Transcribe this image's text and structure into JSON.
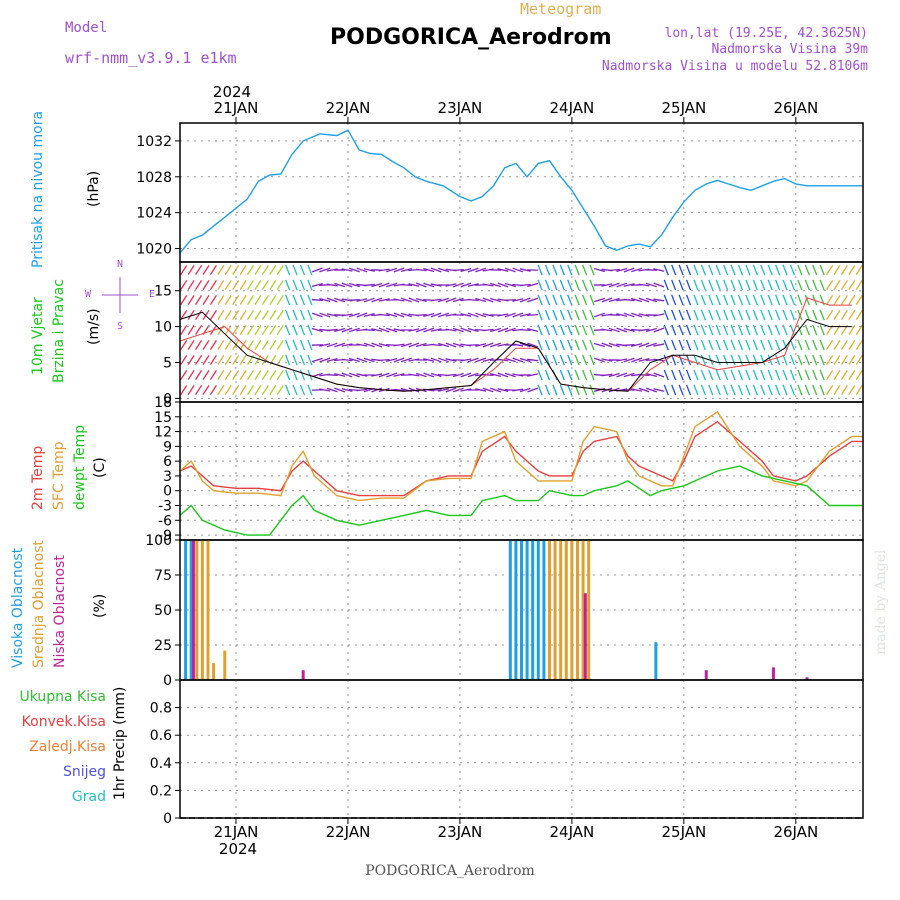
{
  "header": {
    "model_label": "Model",
    "model_name": "wrf-nmm_v3.9.1  e1km",
    "meteogram_label": "Meteogram",
    "station_title": "PODGORICA_Aerodrom",
    "lonlat": "lon,lat (19.25E, 42.3625N)",
    "altitude": "Nadmorska Visina 39m",
    "model_altitude": "Nadmorska Visina u modelu 52.8106m",
    "footer_station": "PODGORICA_Aerodrom",
    "credit": "made by Angel"
  },
  "colors": {
    "pressure": "#1ea0e6",
    "temp2m": "#e84040",
    "sfc_temp": "#e0a030",
    "dewpoint": "#18c818",
    "high_cloud": "#1ea0e6",
    "mid_cloud": "#e0a030",
    "low_cloud": "#c020a0",
    "wind_speed": "#e84040",
    "wind_gust": "#000000",
    "label_purple": "#a050d0",
    "label_meteo": "#e0b050"
  },
  "chart_data": [
    {
      "type": "line",
      "panel": "pressure",
      "ylabel_left": "Pritisak na nivou mora",
      "ylabel": "(hPa)",
      "ylim": [
        1018.5,
        1034
      ],
      "yticks": [
        1020,
        1024,
        1028,
        1032
      ],
      "x_year_top": "2024",
      "x_dates": [
        "21JAN",
        "22JAN",
        "23JAN",
        "24JAN",
        "25JAN",
        "26JAN"
      ],
      "x_day_positions": [
        0.5,
        1.5,
        2.5,
        3.5,
        4.5,
        5.5
      ],
      "xlim": [
        0.0,
        6.1
      ],
      "series": [
        {
          "color_key": "pressure",
          "x": [
            0.0,
            0.1,
            0.2,
            0.3,
            0.45,
            0.6,
            0.7,
            0.8,
            0.9,
            1.0,
            1.1,
            1.25,
            1.4,
            1.5,
            1.6,
            1.7,
            1.8,
            1.9,
            2.0,
            2.1,
            2.2,
            2.35,
            2.5,
            2.6,
            2.7,
            2.8,
            2.9,
            3.0,
            3.1,
            3.2,
            3.3,
            3.4,
            3.5,
            3.6,
            3.7,
            3.8,
            3.9,
            4.0,
            4.1,
            4.2,
            4.3,
            4.4,
            4.5,
            4.6,
            4.7,
            4.8,
            4.9,
            5.0,
            5.1,
            5.2,
            5.3,
            5.4,
            5.5,
            5.6,
            5.7,
            5.8,
            5.9,
            6.0,
            6.1
          ],
          "values": [
            1019.5,
            1021.0,
            1021.5,
            1022.5,
            1024.0,
            1025.5,
            1027.5,
            1028.2,
            1028.3,
            1030.5,
            1032.0,
            1032.8,
            1032.6,
            1033.2,
            1031.0,
            1030.6,
            1030.5,
            1029.7,
            1029.0,
            1028.0,
            1027.5,
            1027.0,
            1025.8,
            1025.3,
            1025.8,
            1027.0,
            1029.0,
            1029.5,
            1028.0,
            1029.5,
            1029.8,
            1028.0,
            1026.5,
            1024.5,
            1022.5,
            1020.3,
            1019.8,
            1020.3,
            1020.5,
            1020.2,
            1021.5,
            1023.5,
            1025.2,
            1026.5,
            1027.2,
            1027.6,
            1027.2,
            1026.8,
            1026.5,
            1027.0,
            1027.5,
            1027.8,
            1027.2,
            1027.0,
            1027.0,
            1027.0,
            1027.0,
            1027.0,
            1027.0
          ]
        }
      ]
    },
    {
      "type": "line",
      "panel": "wind",
      "ylabel_left_1": "10m Vjetar",
      "ylabel_left_2": "Brzina i Pravac",
      "ylabel": "(m/s)",
      "compass": [
        "N",
        "E",
        "S",
        "W",
        "v",
        "^",
        "<",
        ">"
      ],
      "ylim": [
        -0.5,
        19
      ],
      "yticks": [
        0,
        5,
        10,
        15
      ],
      "series": [
        {
          "name_key": "wind_speed",
          "color_key": "wind_speed",
          "x": [
            0.0,
            0.2,
            0.4,
            0.6,
            0.8,
            1.0,
            1.2,
            1.4,
            1.6,
            1.8,
            2.0,
            2.2,
            2.4,
            2.6,
            2.8,
            3.0,
            3.2,
            3.4,
            3.6,
            3.8,
            4.0,
            4.2,
            4.4,
            4.6,
            4.8,
            5.0,
            5.2,
            5.4,
            5.6,
            5.8,
            6.0
          ],
          "values": [
            8,
            9,
            10,
            7,
            5,
            4,
            3,
            2,
            1.5,
            1.2,
            1.0,
            1.2,
            1.5,
            1.8,
            4,
            7,
            7,
            2,
            1.5,
            1.2,
            1.0,
            4,
            6,
            5,
            4,
            4.5,
            5,
            6,
            14,
            13,
            13
          ]
        },
        {
          "name_key": "wind_gust",
          "color_key": "wind_gust",
          "x": [
            0.0,
            0.2,
            0.4,
            0.6,
            0.8,
            1.0,
            1.2,
            1.4,
            1.6,
            1.8,
            2.0,
            2.2,
            2.4,
            2.6,
            2.8,
            3.0,
            3.2,
            3.4,
            3.6,
            3.8,
            4.0,
            4.2,
            4.4,
            4.6,
            4.8,
            5.0,
            5.2,
            5.4,
            5.6,
            5.8,
            6.0
          ],
          "values": [
            11,
            12,
            9,
            6,
            5,
            4,
            3,
            2,
            1.5,
            1.2,
            1.0,
            1.2,
            1.5,
            1.8,
            5,
            8,
            7,
            2,
            1.5,
            1.2,
            1.0,
            5,
            6,
            6,
            5,
            5,
            5,
            7,
            11,
            10,
            10
          ]
        }
      ]
    },
    {
      "type": "line",
      "panel": "temperature",
      "ylabel_left_1": "2m Temp",
      "ylabel_left_2": "SFC Temp",
      "ylabel_left_3": "dewpt Temp",
      "ylabel": "(C)",
      "ylim": [
        -10,
        18
      ],
      "yticks": [
        -9,
        -6,
        -3,
        0,
        3,
        6,
        9,
        12,
        15,
        18
      ],
      "series": [
        {
          "color_key": "temp2m",
          "x": [
            0.0,
            0.1,
            0.2,
            0.3,
            0.5,
            0.7,
            0.9,
            1.0,
            1.1,
            1.2,
            1.4,
            1.6,
            1.8,
            2.0,
            2.2,
            2.4,
            2.6,
            2.7,
            2.9,
            3.0,
            3.2,
            3.3,
            3.5,
            3.6,
            3.7,
            3.9,
            4.0,
            4.1,
            4.3,
            4.4,
            4.5,
            4.6,
            4.8,
            5.0,
            5.2,
            5.3,
            5.5,
            5.6,
            5.8,
            6.0,
            6.1
          ],
          "values": [
            4,
            5,
            3,
            1,
            0.5,
            0.5,
            0,
            4,
            6,
            4,
            0,
            -1,
            -1,
            -1,
            2,
            3,
            3,
            8,
            11,
            8,
            4,
            3,
            3,
            8,
            10,
            11,
            7,
            5,
            3,
            2,
            6,
            11,
            14,
            10,
            6,
            3,
            2,
            3,
            7,
            10,
            10
          ]
        },
        {
          "color_key": "sfc_temp",
          "x": [
            0.0,
            0.1,
            0.2,
            0.3,
            0.5,
            0.7,
            0.9,
            1.0,
            1.1,
            1.2,
            1.4,
            1.6,
            1.8,
            2.0,
            2.2,
            2.4,
            2.6,
            2.7,
            2.9,
            3.0,
            3.2,
            3.3,
            3.5,
            3.6,
            3.7,
            3.9,
            4.0,
            4.1,
            4.3,
            4.4,
            4.5,
            4.6,
            4.8,
            5.0,
            5.2,
            5.3,
            5.5,
            5.6,
            5.8,
            6.0,
            6.1
          ],
          "values": [
            4,
            6,
            2,
            0,
            -0.5,
            -0.5,
            -1,
            5,
            8,
            3,
            -1,
            -2,
            -1.5,
            -1.5,
            2,
            2.5,
            2.5,
            10,
            12,
            6,
            2,
            2,
            2,
            10,
            13,
            12,
            6,
            3,
            1,
            1,
            7,
            13,
            16,
            9,
            5,
            2,
            1,
            2,
            8,
            11,
            11
          ]
        },
        {
          "color_key": "dewpoint",
          "x": [
            0.0,
            0.1,
            0.2,
            0.4,
            0.6,
            0.8,
            1.0,
            1.1,
            1.2,
            1.4,
            1.6,
            1.8,
            2.0,
            2.2,
            2.4,
            2.6,
            2.7,
            2.9,
            3.0,
            3.2,
            3.3,
            3.5,
            3.6,
            3.7,
            3.9,
            4.0,
            4.2,
            4.3,
            4.5,
            4.6,
            4.8,
            5.0,
            5.2,
            5.4,
            5.6,
            5.8,
            6.0,
            6.1
          ],
          "values": [
            -5,
            -3,
            -6,
            -8,
            -9,
            -9,
            -3,
            -1,
            -4,
            -6,
            -7,
            -6,
            -5,
            -4,
            -5,
            -5,
            -2,
            -1,
            -2,
            -2,
            0,
            -1,
            -1,
            0,
            1,
            2,
            -1,
            0,
            1,
            2,
            4,
            5,
            3,
            2,
            1,
            -3,
            -3,
            -3
          ]
        }
      ]
    },
    {
      "type": "bar",
      "panel": "clouds",
      "ylabel_left_1": "Visoka Oblacnost",
      "ylabel_left_2": "Srednja Oblacnost",
      "ylabel_left_3": "Niska Oblacnost",
      "ylabel": "(%)",
      "ylim": [
        0,
        100
      ],
      "yticks": [
        0,
        25,
        50,
        75,
        100
      ],
      "series": [
        {
          "color_key": "high_cloud",
          "x": [
            0.05,
            0.1,
            2.95,
            3.0,
            3.05,
            3.1,
            3.15,
            3.2,
            3.25,
            4.25
          ],
          "values": [
            100,
            100,
            100,
            100,
            100,
            100,
            100,
            100,
            100,
            27
          ]
        },
        {
          "color_key": "mid_cloud",
          "x": [
            0.15,
            0.2,
            0.25,
            0.3,
            0.4,
            3.3,
            3.35,
            3.4,
            3.45,
            3.5,
            3.55,
            3.6,
            3.65
          ],
          "values": [
            100,
            100,
            100,
            12,
            21,
            100,
            100,
            100,
            100,
            100,
            100,
            100,
            100
          ]
        },
        {
          "color_key": "low_cloud",
          "x": [
            0.12,
            1.1,
            3.62,
            4.7,
            5.3,
            5.6
          ],
          "values": [
            100,
            7,
            62,
            7,
            9,
            2
          ]
        }
      ]
    },
    {
      "type": "line",
      "panel": "precip",
      "ylabel": "1hr Precip (mm)",
      "legend": [
        "Ukupna Kisa",
        "Konvek.Kisa",
        "Zaledj.Kisa",
        "Snijeg",
        "Grad"
      ],
      "legend_colors": [
        "#30c030",
        "#e84040",
        "#f08030",
        "#5050e0",
        "#20c0c0"
      ],
      "ylim": [
        0,
        1.0
      ],
      "yticks": [
        0,
        0.2,
        0.4,
        0.6,
        0.8
      ],
      "x_year_bottom": "2024",
      "series": []
    }
  ]
}
